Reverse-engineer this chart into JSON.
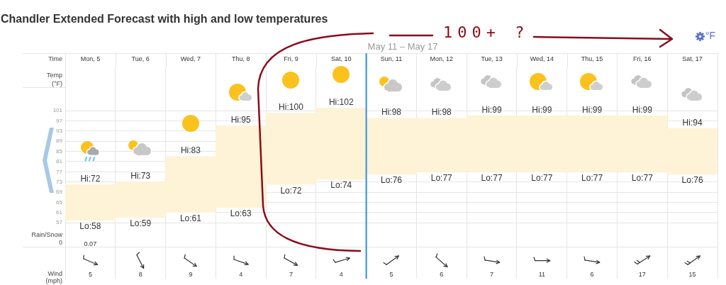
{
  "chart_data": {
    "type": "bar",
    "title": "Chandler Extended Forecast with high and low temperatures",
    "xlabel": "Time",
    "ylabel": "Temp (°F)",
    "categories": [
      "Mon, 5",
      "Tue, 6",
      "Wed, 7",
      "Thu, 8",
      "Fri, 9",
      "Sat, 10",
      "Sun, 11",
      "Mon, 12",
      "Tue, 13",
      "Wed, 14",
      "Thu, 15",
      "Fri, 16",
      "Sat, 17"
    ],
    "values": [
      14,
      14,
      22,
      32,
      28,
      28,
      22,
      21,
      22,
      22,
      22,
      22,
      18
    ],
    "base": [
      58,
      59,
      61,
      63,
      72,
      74,
      76,
      77,
      77,
      77,
      77,
      77,
      76
    ],
    "color": "#fef3d6",
    "ylim": [
      35,
      118
    ],
    "yticks": [
      57,
      61,
      65,
      69,
      73,
      77,
      81,
      85,
      89,
      93,
      97,
      101
    ],
    "grid": true,
    "ref_lines": [
      {
        "axis": "x",
        "value": "Sun, 11",
        "label": "May 11 – May 17",
        "color": "#2f8fd8"
      }
    ],
    "annotations": [
      "°F",
      "100+ ?",
      {
        "text": "Hi:72",
        "x": "Mon, 5",
        "y": 72
      },
      {
        "text": "Hi:73",
        "x": "Tue, 6",
        "y": 73
      },
      {
        "text": "Hi:83",
        "x": "Wed, 7",
        "y": 83
      },
      {
        "text": "Hi:95",
        "x": "Thu, 8",
        "y": 95
      },
      {
        "text": "Hi:100",
        "x": "Fri, 9",
        "y": 100
      },
      {
        "text": "Hi:102",
        "x": "Sat, 10",
        "y": 102
      },
      {
        "text": "Hi:98",
        "x": "Sun, 11",
        "y": 98
      },
      {
        "text": "Hi:98",
        "x": "Mon, 12",
        "y": 98
      },
      {
        "text": "Hi:99",
        "x": "Tue, 13",
        "y": 99
      },
      {
        "text": "Hi:99",
        "x": "Wed, 14",
        "y": 99
      },
      {
        "text": "Hi:99",
        "x": "Thu, 15",
        "y": 99
      },
      {
        "text": "Hi:99",
        "x": "Fri, 16",
        "y": 99
      },
      {
        "text": "Hi:94",
        "x": "Sat, 17",
        "y": 94
      },
      {
        "text": "Lo:58",
        "x": "Mon, 5",
        "y": 58
      },
      {
        "text": "Lo:59",
        "x": "Tue, 6",
        "y": 59
      },
      {
        "text": "Lo:61",
        "x": "Wed, 7",
        "y": 61
      },
      {
        "text": "Lo:63",
        "x": "Thu, 8",
        "y": 63
      },
      {
        "text": "Lo:72",
        "x": "Fri, 9",
        "y": 72
      },
      {
        "text": "Lo:74",
        "x": "Sat, 10",
        "y": 74
      },
      {
        "text": "Lo:76",
        "x": "Sun, 11",
        "y": 76
      },
      {
        "text": "Lo:77",
        "x": "Mon, 12",
        "y": 77
      },
      {
        "text": "Lo:77",
        "x": "Tue, 13",
        "y": 77
      },
      {
        "text": "Lo:77",
        "x": "Wed, 14",
        "y": 77
      },
      {
        "text": "Lo:77",
        "x": "Thu, 15",
        "y": 77
      },
      {
        "text": "Lo:77",
        "x": "Fri, 16",
        "y": 77
      },
      {
        "text": "Lo:76",
        "x": "Sat, 17",
        "y": 76
      },
      "Rain/Snow",
      "0",
      "Wind (mph)",
      "0.07",
      "5",
      "8",
      "9",
      "4",
      "7",
      "4",
      "5",
      "6",
      "7",
      "11",
      "6",
      "17",
      "15"
    ]
  }
}
